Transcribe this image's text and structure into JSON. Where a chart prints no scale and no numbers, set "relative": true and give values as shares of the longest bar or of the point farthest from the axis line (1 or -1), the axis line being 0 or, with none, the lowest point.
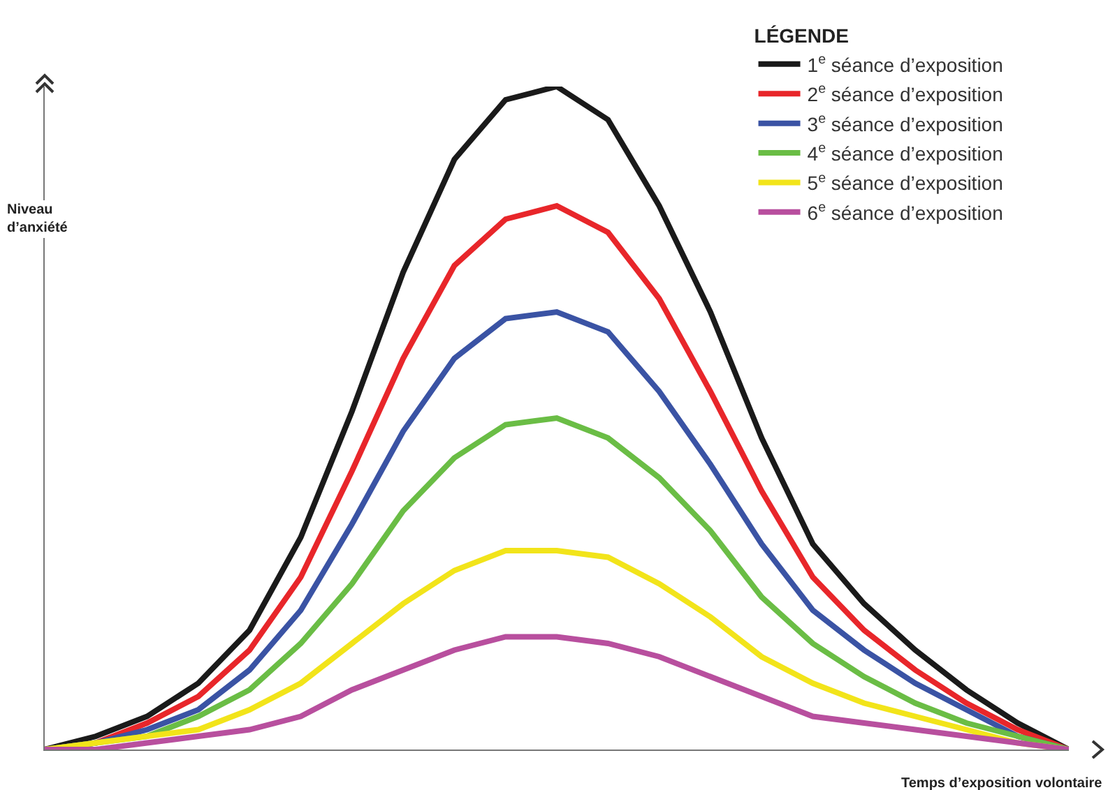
{
  "chart_data": {
    "type": "line",
    "relative": true,
    "xlabel": "Temps d’exposition volontaire",
    "ylabel": "Niveau d’anxiété",
    "legend_title": "LÉGENDE",
    "legend": "top right",
    "marker": "none",
    "line_style": "solid",
    "categories": [
      null,
      null,
      null,
      null,
      null,
      null,
      null,
      null,
      null,
      null,
      null,
      null,
      null,
      null,
      null,
      null,
      null,
      null,
      null,
      null,
      null
    ],
    "series": [
      {
        "name": "1$^{e}$ séance d’exposition",
        "color": "#1a1a1a",
        "values": [
          0,
          0.02,
          0.05,
          0.1,
          0.18,
          0.32,
          0.51,
          0.72,
          0.89,
          0.98,
          1,
          0.95,
          0.82,
          0.66,
          0.47,
          0.31,
          0.22,
          0.15,
          0.09,
          0.04,
          0
        ]
      },
      {
        "name": "2$^{e}$ séance d’exposition",
        "color": "#e8262a",
        "values": [
          0,
          0.01,
          0.04,
          0.08,
          0.15,
          0.26,
          0.42,
          0.59,
          0.73,
          0.8,
          0.82,
          0.78,
          0.68,
          0.54,
          0.39,
          0.26,
          0.18,
          0.12,
          0.07,
          0.03,
          0
        ]
      },
      {
        "name": "3$^{e}$ séance d’exposition",
        "color": "#3a53a4",
        "values": [
          0,
          0.01,
          0.03,
          0.06,
          0.12,
          0.21,
          0.34,
          0.48,
          0.59,
          0.65,
          0.66,
          0.63,
          0.54,
          0.43,
          0.31,
          0.21,
          0.15,
          0.1,
          0.06,
          0.02,
          0
        ]
      },
      {
        "name": "4$^{e}$ séance d’exposition",
        "color": "#6abd45",
        "values": [
          0,
          0.01,
          0.02,
          0.05,
          0.09,
          0.16,
          0.25,
          0.36,
          0.44,
          0.49,
          0.5,
          0.47,
          0.41,
          0.33,
          0.23,
          0.16,
          0.11,
          0.07,
          0.04,
          0.02,
          0
        ]
      },
      {
        "name": "5$^{e}$ séance d’exposition",
        "color": "#f2e41a",
        "values": [
          0,
          0.01,
          0.02,
          0.03,
          0.06,
          0.1,
          0.16,
          0.22,
          0.27,
          0.3,
          0.3,
          0.29,
          0.25,
          0.2,
          0.14,
          0.1,
          0.07,
          0.05,
          0.03,
          0.01,
          0
        ]
      },
      {
        "name": "6$^{e}$ séance d’exposition",
        "color": "#b84f9e",
        "values": [
          0,
          0,
          0.01,
          0.02,
          0.03,
          0.05,
          0.09,
          0.12,
          0.15,
          0.17,
          0.17,
          0.16,
          0.14,
          0.11,
          0.08,
          0.05,
          0.04,
          0.03,
          0.02,
          0.01,
          0
        ]
      }
    ]
  }
}
